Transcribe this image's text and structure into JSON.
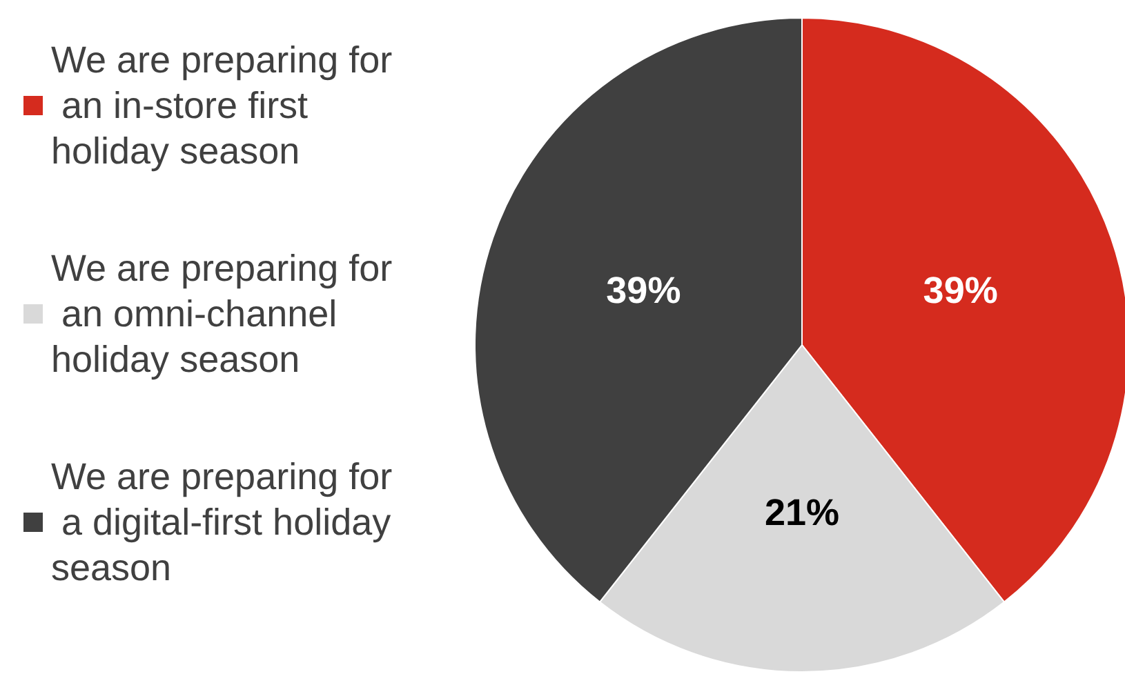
{
  "chart_data": {
    "type": "pie",
    "categories": [
      "We are preparing for an in-store first holiday season",
      "We are preparing for an omni-channel holiday season",
      "We are preparing for a digital-first holiday season"
    ],
    "values": [
      39,
      21,
      39
    ],
    "colors": [
      "#d52b1e",
      "#d9d9d9",
      "#404040"
    ],
    "value_labels": [
      "39%",
      "21%",
      "39%"
    ],
    "legend": "left"
  }
}
